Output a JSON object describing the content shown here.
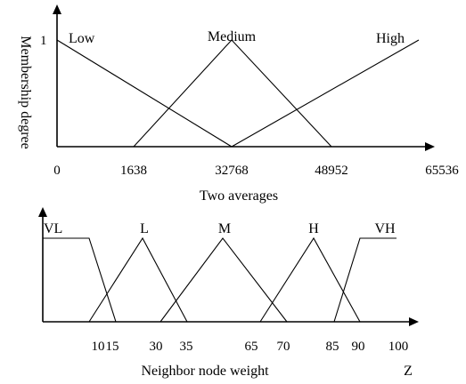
{
  "chart_data": [
    {
      "type": "line",
      "ylabel": "Membership degree",
      "xlabel": "Two averages",
      "y_tick_labels": [
        "1"
      ],
      "x_tick_labels": [
        "0",
        "1638",
        "32768",
        "48952",
        "65536"
      ],
      "series": [
        {
          "name": "Low",
          "x": [
            0,
            32768
          ],
          "y": [
            1,
            0
          ]
        },
        {
          "name": "Medium",
          "x": [
            1638,
            32768,
            48952
          ],
          "y": [
            0,
            1,
            0
          ]
        },
        {
          "name": "High",
          "x": [
            32768,
            65536
          ],
          "y": [
            0,
            1
          ]
        }
      ]
    },
    {
      "type": "line",
      "xlabel": "Neighbor node weight",
      "axis_end_label": "Z",
      "x_tick_labels": [
        "10",
        "15",
        "30",
        "35",
        "65",
        "70",
        "85",
        "90",
        "100"
      ],
      "series": [
        {
          "name": "VL",
          "x": [
            0,
            10,
            15
          ],
          "y": [
            1,
            1,
            0
          ]
        },
        {
          "name": "L",
          "x": [
            10,
            22.5,
            35
          ],
          "y": [
            0,
            1,
            0
          ]
        },
        {
          "name": "M",
          "x": [
            30,
            50,
            70
          ],
          "y": [
            0,
            1,
            0
          ]
        },
        {
          "name": "H",
          "x": [
            65,
            77.5,
            90
          ],
          "y": [
            0,
            1,
            0
          ]
        },
        {
          "name": "VH",
          "x": [
            85,
            90,
            100
          ],
          "y": [
            0,
            1,
            1
          ]
        }
      ]
    }
  ]
}
